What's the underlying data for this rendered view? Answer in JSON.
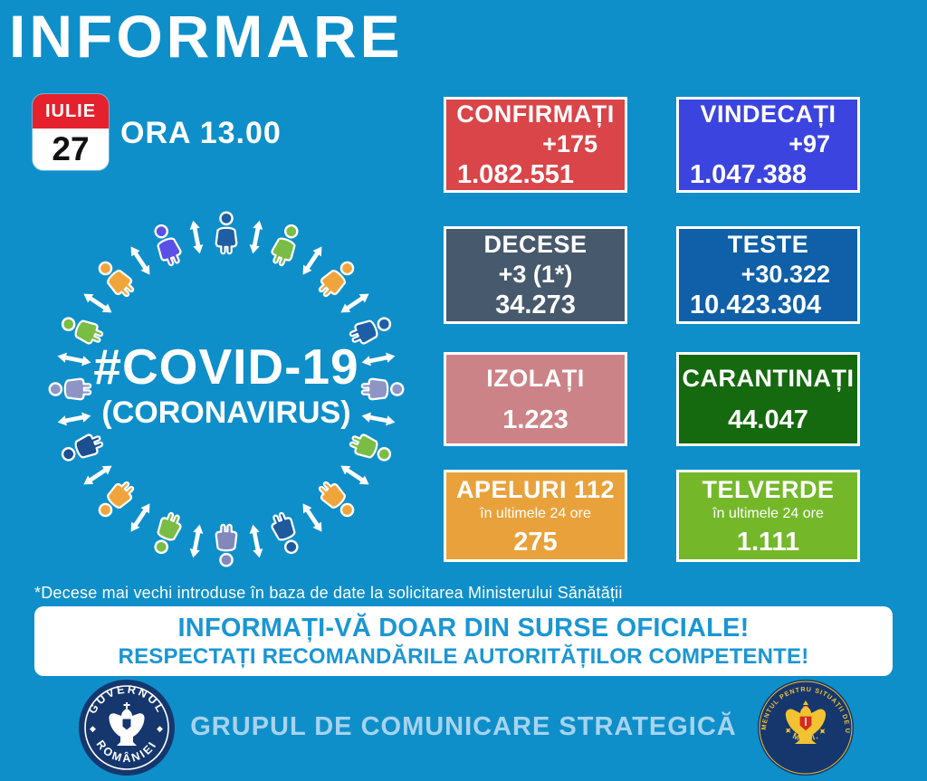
{
  "title": "INFORMARE",
  "date": {
    "month": "IULIE",
    "day": "27",
    "time": "ORA 13.00"
  },
  "stats": [
    {
      "id": "confirmati",
      "label": "CONFIRMAȚI",
      "delta": "+175",
      "total": "1.082.551",
      "bg": "#D94548"
    },
    {
      "id": "vindecati",
      "label": "VINDECAȚI",
      "delta": "+97",
      "total": "1.047.388",
      "bg": "#3C44E0"
    },
    {
      "id": "decese",
      "label": "DECESE",
      "delta": "+3 (1*)",
      "total": "34.273",
      "bg": "#47596C"
    },
    {
      "id": "teste",
      "label": "TESTE",
      "delta": "+30.322",
      "total": "10.423.304",
      "bg": "#0F60A8"
    },
    {
      "id": "izolati",
      "label": "IZOLAȚI",
      "total": "1.223",
      "bg": "#CC8387"
    },
    {
      "id": "carantinati",
      "label": "CARANTINAȚI",
      "total": "44.047",
      "bg": "#15690E"
    },
    {
      "id": "apeluri112",
      "label": "APELURI 112",
      "sub": "în ultimele 24 ore",
      "total": "275",
      "bg": "#E9A23B"
    },
    {
      "id": "telverde",
      "label": "TELVERDE",
      "sub": "în ultimele 24 ore",
      "total": "1.111",
      "bg": "#74B82A"
    }
  ],
  "diagram": {
    "hashtag": "#COVID-19",
    "subtitle": "(CORONAVIRUS)",
    "people_colors": [
      "#1E5EA2",
      "#7ABD44",
      "#F0A53C",
      "#1D5FA6",
      "#8E95C6",
      "#7ABD44",
      "#F0A53C",
      "#1D5A9E",
      "#8088BC",
      "#7ABD44",
      "#F0A53C",
      "#1C4F90",
      "#8E95C6",
      "#7ABD44",
      "#F0A53C",
      "#5A50E6"
    ],
    "arrow_color": "#FFFFFF"
  },
  "footnote": "*Decese mai vechi introduse în baza de date la solicitarea Ministerului Sănătății",
  "banner": {
    "line1": "INFORMAȚI-VĂ DOAR DIN SURSE OFICIALE!",
    "line2": "RESPECTAȚI RECOMANDĂRILE AUTORITĂȚILOR COMPETENTE!",
    "text_color": "#1A96D4"
  },
  "footer": {
    "text": "GRUPUL DE COMUNICARE STRATEGICĂ",
    "text_color": "#A6D3EE",
    "left_seal": {
      "top": "GUVERNUL",
      "bottom": "ROMÂNIEI"
    },
    "right_seal": {
      "around": "DEPARTAMENTUL PENTRU SITUAȚII DE URGENȚĂ",
      "bottom": "✦  M.A.I.  ✦"
    }
  },
  "colors": {
    "background": "#0E8FC9",
    "calendar_red": "#E5212E",
    "seal_navy": "#15376E",
    "seal_gold": "#F2C230",
    "seal_red": "#D42B1E"
  }
}
